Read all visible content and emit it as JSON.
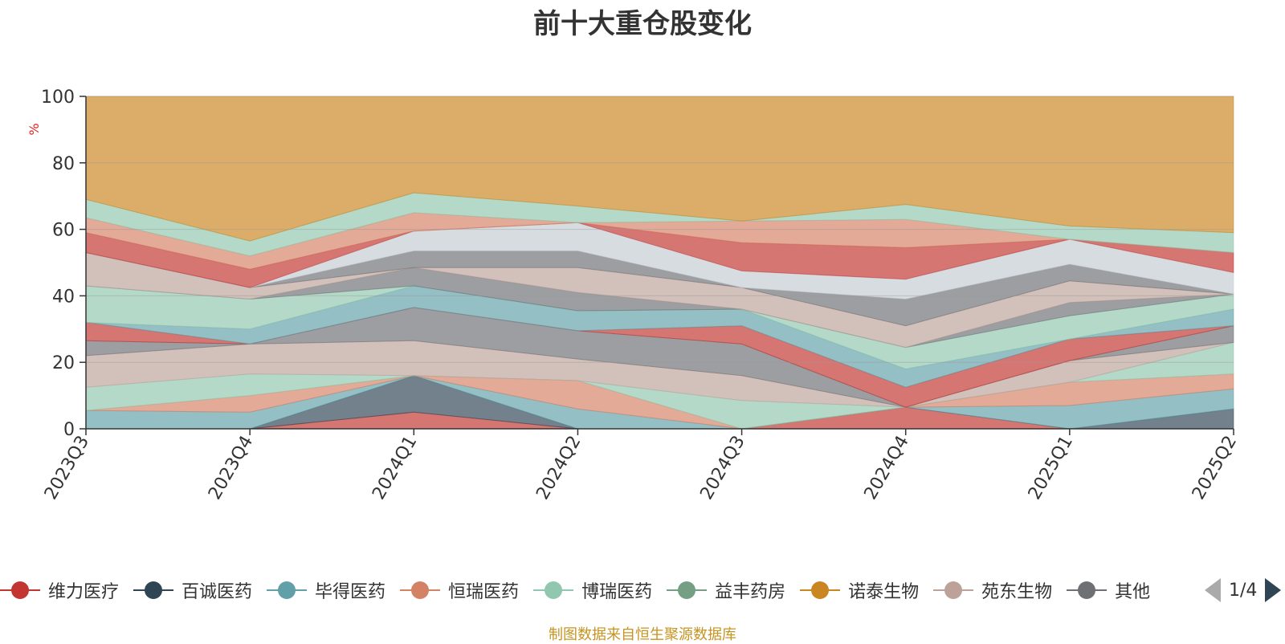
{
  "title": "前十大重仓股变化",
  "source_note": "制图数据来自恒生聚源数据库",
  "legend": {
    "page_label": "1/4",
    "items": [
      {
        "name": "维力医疗",
        "color": "#c23531"
      },
      {
        "name": "百诚医药",
        "color": "#2f4554"
      },
      {
        "name": "毕得医药",
        "color": "#61a0a8"
      },
      {
        "name": "恒瑞医药",
        "color": "#d48265"
      },
      {
        "name": "博瑞医药",
        "color": "#91c7ae"
      },
      {
        "name": "益丰药房",
        "color": "#749f83"
      },
      {
        "name": "诺泰生物",
        "color": "#ca8622"
      },
      {
        "name": "苑东生物",
        "color": "#bda29a"
      },
      {
        "name": "其他",
        "color": "#6e7074"
      }
    ]
  },
  "chart_data": {
    "type": "area",
    "title": "前十大重仓股变化",
    "ylabel": "%",
    "ylim": [
      0,
      100
    ],
    "yticks": [
      0,
      20,
      40,
      60,
      80,
      100
    ],
    "grid": true,
    "legend_position": "bottom",
    "categories": [
      "2023Q3",
      "2023Q4",
      "2024Q1",
      "2024Q2",
      "2024Q3",
      "2024Q4",
      "2025Q1",
      "2025Q2"
    ],
    "boundaries": [
      [
        0,
        0,
        0,
        0,
        0,
        0,
        0,
        0
      ],
      [
        0,
        0,
        5,
        0,
        0,
        6.5,
        0,
        0
      ],
      [
        0,
        0,
        16,
        0,
        0,
        6.5,
        0,
        6
      ],
      [
        5.5,
        5,
        16,
        6,
        0,
        6.5,
        7,
        12
      ],
      [
        5.5,
        10,
        16,
        14.5,
        0,
        6.5,
        14,
        16.5
      ],
      [
        12.5,
        16.5,
        16,
        14.5,
        8.5,
        6.5,
        14,
        26
      ],
      [
        22,
        25.5,
        26.5,
        21,
        16,
        6.5,
        20.5,
        26
      ],
      [
        26.5,
        25.5,
        36.5,
        29.5,
        25.5,
        6.5,
        20.5,
        31
      ],
      [
        32,
        25.5,
        36.5,
        29.5,
        31,
        12.5,
        27,
        31
      ],
      [
        32,
        30,
        43,
        35.5,
        36,
        18,
        27,
        36
      ],
      [
        43,
        39,
        43,
        35.5,
        36,
        24.5,
        34,
        40.5
      ],
      [
        43,
        39,
        48.5,
        41,
        36,
        24.5,
        38,
        40.5
      ],
      [
        53,
        42.5,
        48.5,
        48.5,
        42.5,
        31,
        44.5,
        40.5
      ],
      [
        53,
        42.5,
        53.5,
        53.5,
        42.5,
        39,
        49.5,
        40.5
      ],
      [
        53,
        42.5,
        59.5,
        62,
        47.5,
        45,
        57,
        47
      ],
      [
        59,
        48,
        59.5,
        62,
        56,
        54.5,
        57,
        53
      ],
      [
        63.5,
        52,
        65,
        62,
        62.5,
        63,
        57,
        53
      ],
      [
        69,
        56.5,
        71,
        67,
        62.5,
        67.5,
        61,
        59
      ],
      [
        100,
        100,
        100,
        100,
        100,
        100,
        100,
        100
      ]
    ],
    "band_colors": [
      "#c23531",
      "#2f4554",
      "#61a0a8",
      "#d48265",
      "#91c7ae",
      "#bda29a",
      "#6e7074",
      "#c23531",
      "#61a0a8",
      "#91c7ae",
      "#6e7074",
      "#bda29a",
      "#6e7074",
      "#c4ccd3",
      "#c23531",
      "#d48265",
      "#91c7ae",
      "#ca8622",
      "#bda29a"
    ]
  }
}
